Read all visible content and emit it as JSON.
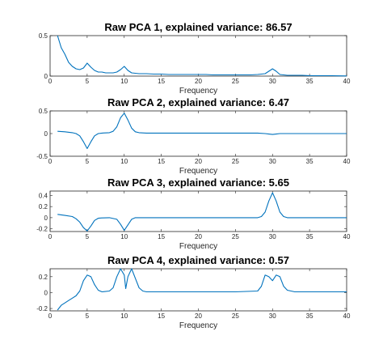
{
  "figure": {
    "line_color": "#0072BD",
    "axis_color": "#262626"
  },
  "chart_data": [
    {
      "type": "line",
      "title": "Raw PCA 1, explained variance: 86.57",
      "xlabel": "Frequency",
      "ylabel": "",
      "xlim": [
        0,
        40
      ],
      "ylim": [
        0,
        0.5
      ],
      "xticks": [
        0,
        5,
        10,
        15,
        20,
        25,
        30,
        35,
        40
      ],
      "yticks": [
        0,
        0.5
      ],
      "ytick_labels": [
        "0",
        "0.5"
      ],
      "grid": false,
      "series": [
        {
          "x": [
            1,
            1.5,
            2,
            2.5,
            3,
            3.5,
            4,
            4.5,
            5,
            5.5,
            6,
            6.5,
            7,
            7.5,
            8,
            8.5,
            9,
            9.5,
            10,
            10.5,
            11,
            11.5,
            12,
            13,
            14,
            15,
            16,
            17,
            18,
            19,
            20,
            21,
            22,
            23,
            24,
            25,
            26,
            27,
            28,
            29,
            29.5,
            30,
            30.5,
            31,
            32,
            33,
            34,
            35,
            36,
            37,
            38,
            39,
            40
          ],
          "y": [
            0.5,
            0.35,
            0.27,
            0.17,
            0.12,
            0.09,
            0.08,
            0.1,
            0.16,
            0.11,
            0.07,
            0.05,
            0.05,
            0.04,
            0.04,
            0.04,
            0.05,
            0.08,
            0.12,
            0.07,
            0.04,
            0.035,
            0.03,
            0.03,
            0.025,
            0.025,
            0.02,
            0.02,
            0.02,
            0.02,
            0.02,
            0.02,
            0.015,
            0.015,
            0.015,
            0.015,
            0.015,
            0.015,
            0.02,
            0.03,
            0.06,
            0.09,
            0.06,
            0.02,
            0.01,
            0.01,
            0.01,
            0.005,
            0.005,
            0.005,
            0.005,
            0.003,
            0.002
          ]
        }
      ]
    },
    {
      "type": "line",
      "title": "Raw PCA 2, explained variance: 6.47",
      "xlabel": "Frequency",
      "ylabel": "",
      "xlim": [
        0,
        40
      ],
      "ylim": [
        -0.5,
        0.5
      ],
      "xticks": [
        0,
        5,
        10,
        15,
        20,
        25,
        30,
        35,
        40
      ],
      "yticks": [
        -0.5,
        0,
        0.5
      ],
      "ytick_labels": [
        "-0.5",
        "0",
        "0.5"
      ],
      "grid": false,
      "series": [
        {
          "x": [
            1,
            2,
            3,
            3.5,
            4,
            4.5,
            5,
            5.5,
            6,
            6.5,
            7,
            8,
            8.5,
            9,
            9.5,
            10,
            10.5,
            11,
            11.5,
            12,
            13,
            15,
            20,
            25,
            28,
            29,
            29.5,
            30,
            30.5,
            31,
            32,
            35,
            40
          ],
          "y": [
            0.05,
            0.04,
            0.02,
            0,
            -0.05,
            -0.18,
            -0.33,
            -0.18,
            -0.05,
            0,
            0.01,
            0.02,
            0.05,
            0.15,
            0.35,
            0.45,
            0.3,
            0.12,
            0.04,
            0.02,
            0.01,
            0.01,
            0.01,
            0.01,
            0.01,
            0,
            -0.01,
            -0.02,
            -0.01,
            0,
            0,
            0,
            0
          ]
        }
      ]
    },
    {
      "type": "line",
      "title": "Raw PCA 3, explained variance: 5.65",
      "xlabel": "Frequency",
      "ylabel": "",
      "xlim": [
        0,
        40
      ],
      "ylim": [
        -0.25,
        0.48
      ],
      "xticks": [
        0,
        5,
        10,
        15,
        20,
        25,
        30,
        35,
        40
      ],
      "yticks": [
        -0.2,
        0,
        0.2,
        0.4
      ],
      "ytick_labels": [
        "-0.2",
        "0",
        "0.2",
        "0.4"
      ],
      "grid": false,
      "series": [
        {
          "x": [
            1,
            2,
            3,
            3.5,
            4,
            4.5,
            5,
            5.5,
            6,
            6.5,
            7,
            8,
            9,
            9.5,
            10,
            10.5,
            11,
            11.5,
            12,
            13,
            15,
            20,
            25,
            28,
            28.5,
            29,
            29.5,
            30,
            30.5,
            31,
            31.5,
            32,
            33,
            35,
            40
          ],
          "y": [
            0.06,
            0.04,
            0.02,
            -0.02,
            -0.08,
            -0.18,
            -0.24,
            -0.15,
            -0.05,
            -0.01,
            -0.005,
            0,
            -0.03,
            -0.12,
            -0.23,
            -0.13,
            -0.03,
            0,
            0,
            0,
            0,
            0,
            0,
            0,
            0.02,
            0.1,
            0.3,
            0.45,
            0.3,
            0.1,
            0.02,
            0,
            0,
            0,
            0
          ]
        }
      ]
    },
    {
      "type": "line",
      "title": "Raw PCA 4, explained variance: 0.57",
      "xlabel": "Frequency",
      "ylabel": "",
      "xlim": [
        0,
        40
      ],
      "ylim": [
        -0.23,
        0.3
      ],
      "xticks": [
        0,
        5,
        10,
        15,
        20,
        25,
        30,
        35,
        40
      ],
      "yticks": [
        -0.2,
        0,
        0.2
      ],
      "ytick_labels": [
        "-0.2",
        "0",
        "0.2"
      ],
      "grid": false,
      "series": [
        {
          "x": [
            1,
            1.5,
            2,
            2.5,
            3,
            3.5,
            4,
            4.5,
            5,
            5.5,
            6,
            6.5,
            7,
            8,
            8.5,
            9,
            9.5,
            10,
            10.2,
            10.5,
            11,
            11.5,
            12,
            12.5,
            13,
            15,
            20,
            25,
            28,
            28.5,
            29,
            29.5,
            30,
            30.5,
            31,
            31.5,
            32,
            33,
            35,
            40
          ],
          "y": [
            -0.22,
            -0.16,
            -0.13,
            -0.1,
            -0.07,
            -0.04,
            0.02,
            0.15,
            0.22,
            0.2,
            0.1,
            0.03,
            0.01,
            0.02,
            0.06,
            0.2,
            0.3,
            0.22,
            0.05,
            0.2,
            0.3,
            0.18,
            0.06,
            0.02,
            0.01,
            0.01,
            0.01,
            0.01,
            0.02,
            0.08,
            0.22,
            0.2,
            0.15,
            0.22,
            0.2,
            0.08,
            0.03,
            0.01,
            0.01,
            0.01
          ]
        }
      ]
    }
  ]
}
